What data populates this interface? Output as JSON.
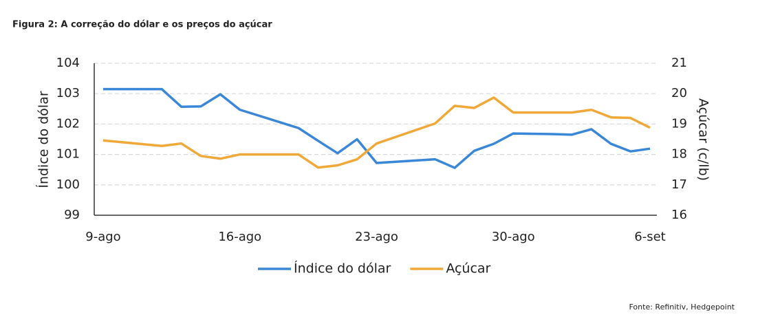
{
  "chart_data": {
    "type": "line",
    "title": "Figura 2: A correção do dólar e os preços do açúcar",
    "source": "Fonte: Refinitiv, Hedgepoint",
    "y_label": "Índice do dólar",
    "y2_label": "Açúcar (c/lb)",
    "x": [
      9,
      12,
      13,
      14,
      15,
      16,
      19,
      20,
      21,
      22,
      23,
      26,
      27,
      28,
      29,
      30,
      32,
      33,
      34,
      35,
      36,
      37
    ],
    "xlim": [
      9,
      37
    ],
    "xticks": [
      {
        "value": 9,
        "label": "9-ago"
      },
      {
        "value": 16,
        "label": "16-ago"
      },
      {
        "value": 23,
        "label": "23-ago"
      },
      {
        "value": 30,
        "label": "30-ago"
      },
      {
        "value": 37,
        "label": "6-set"
      }
    ],
    "ylim": [
      99,
      104
    ],
    "yticks": [
      99,
      100,
      101,
      102,
      103,
      104
    ],
    "y2lim": [
      16,
      21
    ],
    "y2ticks": [
      16,
      17,
      18,
      19,
      20,
      21
    ],
    "grid": true,
    "series": [
      {
        "name": "Índice do dólar",
        "color": "#3a87d8",
        "values": [
          103.15,
          103.15,
          102.57,
          102.58,
          102.98,
          102.47,
          101.87,
          101.45,
          101.04,
          101.5,
          100.72,
          100.84,
          100.56,
          101.12,
          101.35,
          101.69,
          101.67,
          101.65,
          101.83,
          101.35,
          101.1,
          101.19
        ]
      },
      {
        "name": "Açúcar",
        "color": "#f0a838",
        "axis": "y2",
        "values": [
          18.46,
          18.28,
          18.36,
          17.95,
          17.86,
          18.0,
          18.0,
          17.57,
          17.64,
          17.84,
          18.36,
          19.02,
          19.6,
          19.53,
          19.87,
          19.38,
          19.38,
          19.38,
          19.47,
          19.22,
          19.2,
          18.88
        ]
      }
    ]
  }
}
